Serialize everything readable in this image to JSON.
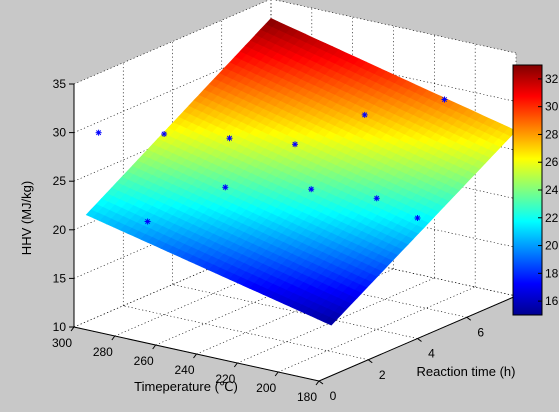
{
  "chart_data": {
    "type": "surface3d",
    "title": "",
    "xlabel": "Timeperature (℃)",
    "ylabel": "Reaction time (h)",
    "zlabel": "HHV (MJ/kg)",
    "x_ticks": [
      "300",
      "280",
      "260",
      "240",
      "220",
      "200",
      "180"
    ],
    "y_ticks": [
      "0",
      "2",
      "4",
      "6",
      "8"
    ],
    "z_ticks": [
      "10",
      "15",
      "20",
      "25",
      "30",
      "35"
    ],
    "xlim": [
      180,
      300
    ],
    "ylim": [
      0,
      8
    ],
    "zlim": [
      10,
      35
    ],
    "colorbar": {
      "range": [
        15,
        33
      ],
      "ticks": [
        "16",
        "18",
        "20",
        "22",
        "24",
        "26",
        "28",
        "30",
        "32"
      ],
      "colormap": "jet"
    },
    "grid": true,
    "surface": {
      "temperatures": [
        180,
        300
      ],
      "times": [
        0.5,
        8
      ],
      "corners": [
        {
          "temperature": 300,
          "time": 0.5,
          "hhv": 21.0
        },
        {
          "temperature": 180,
          "time": 0.5,
          "hhv": 15.2
        },
        {
          "temperature": 300,
          "time": 8,
          "hhv": 33.0
        },
        {
          "temperature": 180,
          "time": 8,
          "hhv": 27.0
        }
      ]
    },
    "points": [
      {
        "temperature": 300,
        "time": 1,
        "hhv": 28.9
      },
      {
        "temperature": 280,
        "time": 2,
        "hhv": 28.6
      },
      {
        "temperature": 260,
        "time": 3,
        "hhv": 28.0
      },
      {
        "temperature": 250,
        "time": 2,
        "hhv": 24.5
      },
      {
        "temperature": 270,
        "time": 0.5,
        "hhv": 21.7
      },
      {
        "temperature": 240,
        "time": 4,
        "hhv": 27.2
      },
      {
        "temperature": 230,
        "time": 6,
        "hhv": 28.5
      },
      {
        "temperature": 220,
        "time": 3,
        "hhv": 24.6
      },
      {
        "temperature": 215,
        "time": 8,
        "hhv": 28.6
      },
      {
        "temperature": 200,
        "time": 4,
        "hhv": 23.5
      },
      {
        "temperature": 180,
        "time": 4,
        "hhv": 22.4
      }
    ]
  }
}
